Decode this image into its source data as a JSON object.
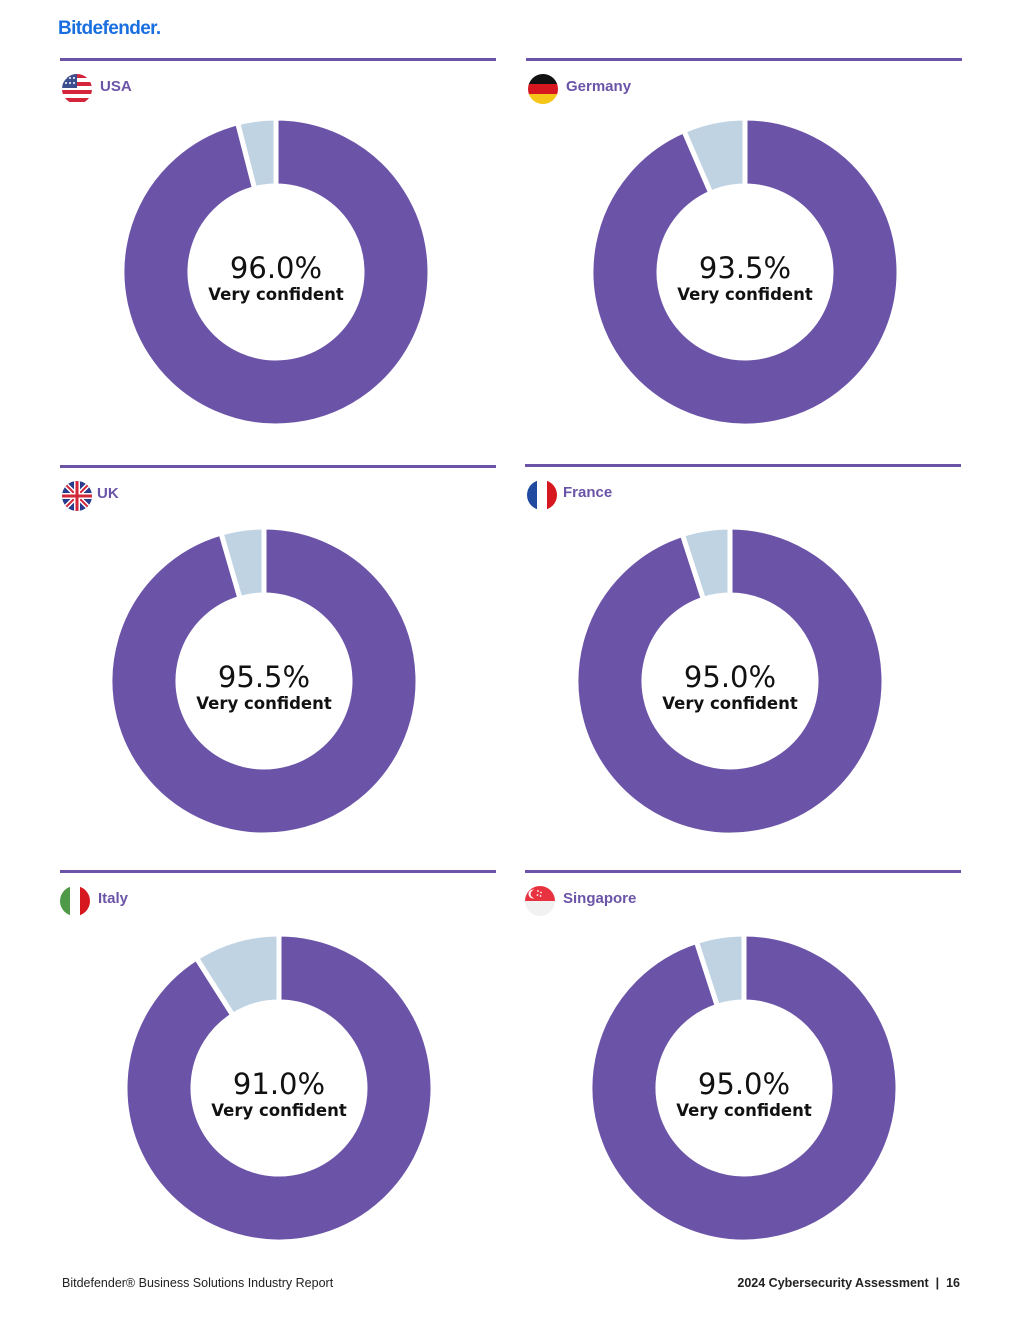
{
  "brand": {
    "logo_text": "Bitdefender."
  },
  "colors": {
    "primary": "#6b54a8",
    "secondary": "#c0d3e3",
    "logo": "#1a6fe0"
  },
  "chart_data": [
    {
      "type": "pie",
      "country": "USA",
      "value_label": "96.0%",
      "caption": "Very confident",
      "values": [
        96.0,
        4.0
      ],
      "flag": "usa-flag"
    },
    {
      "type": "pie",
      "country": "Germany",
      "value_label": "93.5%",
      "caption": "Very confident",
      "values": [
        93.5,
        6.5
      ],
      "flag": "germany-flag"
    },
    {
      "type": "pie",
      "country": "UK",
      "value_label": "95.5%",
      "caption": "Very confident",
      "values": [
        95.5,
        4.5
      ],
      "flag": "uk-flag"
    },
    {
      "type": "pie",
      "country": "France",
      "value_label": "95.0%",
      "caption": "Very confident",
      "values": [
        95.0,
        5.0
      ],
      "flag": "france-flag"
    },
    {
      "type": "pie",
      "country": "Italy",
      "value_label": "91.0%",
      "caption": "Very confident",
      "values": [
        91.0,
        9.0
      ],
      "flag": "italy-flag"
    },
    {
      "type": "pie",
      "country": "Singapore",
      "value_label": "95.0%",
      "caption": "Very confident",
      "values": [
        95.0,
        5.0
      ],
      "flag": "singapore-flag"
    }
  ],
  "footer": {
    "left": "Bitdefender® Business Solutions Industry Report",
    "right": "2024 Cybersecurity Assessment  |  16"
  }
}
